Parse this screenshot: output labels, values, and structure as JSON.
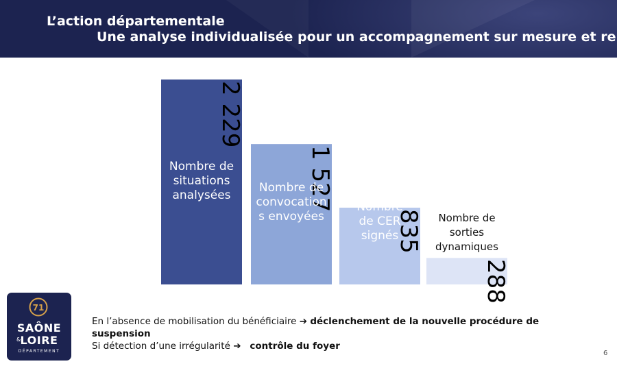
{
  "header": {
    "title": "L’action départementale",
    "subtitle": "Une analyse individualisée pour un accompagnement sur mesure et renforcé"
  },
  "chart_data": {
    "type": "bar",
    "categories": [
      "Nombre de situations analysées",
      "Nombre de convocations envoyées",
      "Nombre de CER signés",
      "Nombre de sorties dynamiques"
    ],
    "category_display": [
      [
        "Nombre de",
        "situations",
        "analysées"
      ],
      [
        "Nombre de",
        "convocation",
        "s envoyées"
      ],
      [
        "Nombre",
        "de CER",
        "signés"
      ],
      [
        "Nombre de",
        "sorties",
        "dynamiques"
      ]
    ],
    "values": [
      2229,
      1527,
      835,
      288
    ],
    "value_labels": [
      "2 229",
      "1 527",
      "835",
      "288"
    ],
    "colors": [
      "#3b4e91",
      "#8da6d8",
      "#b7c8ec",
      "#dde4f6"
    ],
    "label_colors": [
      "#ffffff",
      "#ffffff",
      "#ffffff",
      "#111111"
    ]
  },
  "logo": {
    "line1": "SAÔNE",
    "ampersand": "&",
    "line2": "LOIRE",
    "line3": "DÉPARTEMENT",
    "emblem_text": "71"
  },
  "notes": {
    "line1_prefix": "En l’absence de mobilisation du bénéficiaire",
    "arrow": "➔",
    "line1_bold": "déclenchement de la nouvelle procédure de suspension",
    "line2_prefix": "Si détection d’une irrégularité",
    "line2_bold": "contrôle du foyer"
  },
  "page_number": "6"
}
